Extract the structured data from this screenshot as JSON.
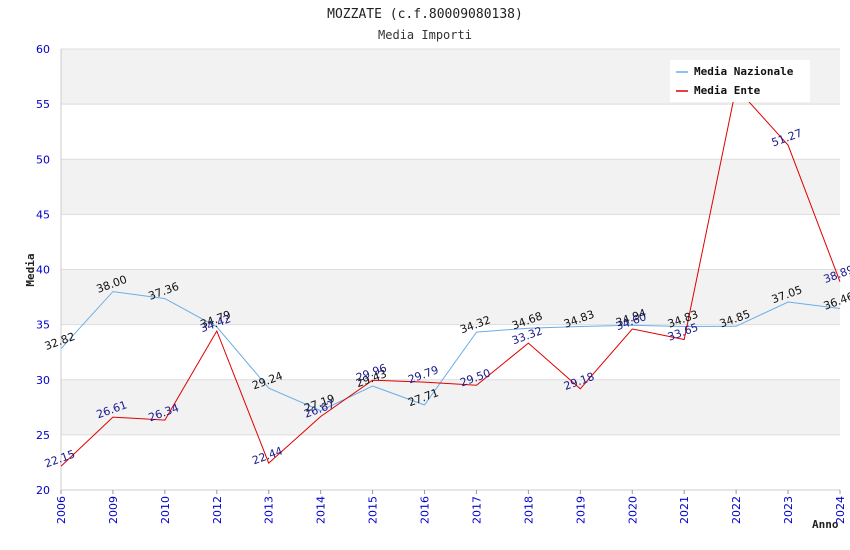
{
  "chart_data": {
    "type": "line",
    "title": "MOZZATE (c.f.80009080138)",
    "subtitle": "Media Importi",
    "xlabel": "Anno",
    "ylabel": "Media",
    "ylim": [
      20,
      60
    ],
    "yticks": [
      20,
      25,
      30,
      35,
      40,
      45,
      50,
      55,
      60
    ],
    "categories": [
      "2006",
      "2009",
      "2010",
      "2012",
      "2013",
      "2014",
      "2015",
      "2016",
      "2017",
      "2018",
      "2019",
      "2020",
      "2021",
      "2022",
      "2023",
      "2024"
    ],
    "series": [
      {
        "name": "Media Nazionale",
        "color": "#6aaee8",
        "label_color": "#111111",
        "values": [
          32.82,
          38.0,
          37.36,
          34.79,
          29.24,
          27.19,
          29.43,
          27.71,
          34.32,
          34.68,
          34.83,
          34.94,
          34.83,
          34.85,
          37.05,
          36.46
        ],
        "labels": [
          "32.82",
          "38.00",
          "37.36",
          "34.79",
          "29.24",
          "27.19",
          "29.43",
          "27.71",
          "34.32",
          "34.68",
          "34.83",
          "34.94",
          "34.83",
          "34.85",
          "37.05",
          "36.46"
        ]
      },
      {
        "name": "Media Ente",
        "color": "#e00000",
        "label_color": "#1a1a8c",
        "values": [
          22.15,
          26.61,
          26.34,
          34.42,
          22.44,
          26.67,
          29.96,
          29.79,
          29.5,
          33.32,
          29.18,
          34.6,
          33.65,
          56.5,
          51.27,
          38.89
        ],
        "labels": [
          "22.15",
          "26.61",
          "26.34",
          "34.42",
          "22.44",
          "26.67",
          "29.96",
          "29.79",
          "29.50",
          "33.32",
          "29.18",
          "34.60",
          "33.65",
          "",
          "51.27",
          "38.89"
        ]
      }
    ],
    "legend_position": "top-right",
    "grid": true
  }
}
